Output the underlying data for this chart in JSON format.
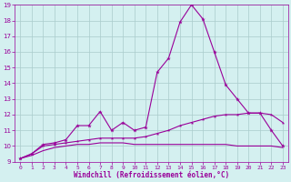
{
  "xlabel": "Windchill (Refroidissement éolien,°C)",
  "x": [
    0,
    1,
    2,
    3,
    4,
    5,
    6,
    7,
    8,
    9,
    10,
    11,
    12,
    13,
    14,
    15,
    16,
    17,
    18,
    19,
    20,
    21,
    22,
    23
  ],
  "line1": [
    9.2,
    9.5,
    10.1,
    10.2,
    10.4,
    11.3,
    11.3,
    12.2,
    11.0,
    11.5,
    11.0,
    11.2,
    14.7,
    15.6,
    17.9,
    19.0,
    18.1,
    16.0,
    13.9,
    13.0,
    12.1,
    12.1,
    11.0,
    10.0
  ],
  "line2": [
    9.2,
    9.5,
    10.0,
    10.1,
    10.2,
    10.3,
    10.4,
    10.5,
    10.5,
    10.5,
    10.5,
    10.6,
    10.8,
    11.0,
    11.3,
    11.5,
    11.7,
    11.9,
    12.0,
    12.0,
    12.1,
    12.1,
    12.0,
    11.5
  ],
  "line3": [
    9.2,
    9.4,
    9.7,
    9.9,
    10.0,
    10.1,
    10.1,
    10.2,
    10.2,
    10.2,
    10.1,
    10.1,
    10.1,
    10.1,
    10.1,
    10.1,
    10.1,
    10.1,
    10.1,
    10.0,
    10.0,
    10.0,
    10.0,
    9.9
  ],
  "line_color": "#990099",
  "bg_color": "#d4f0f0",
  "grid_color": "#aacccc",
  "ylim": [
    9,
    19
  ],
  "yticks": [
    9,
    10,
    11,
    12,
    13,
    14,
    15,
    16,
    17,
    18,
    19
  ],
  "xticks": [
    0,
    1,
    2,
    3,
    4,
    5,
    6,
    7,
    8,
    9,
    10,
    11,
    12,
    13,
    14,
    15,
    16,
    17,
    18,
    19,
    20,
    21,
    22,
    23
  ],
  "xtick_labels": [
    "0",
    "1",
    "2",
    "3",
    "4",
    "5",
    "6",
    "7",
    "8",
    "9",
    "10",
    "11",
    "12",
    "13",
    "14",
    "15",
    "16",
    "17",
    "18",
    "19",
    "20",
    "21",
    "22",
    "23"
  ]
}
